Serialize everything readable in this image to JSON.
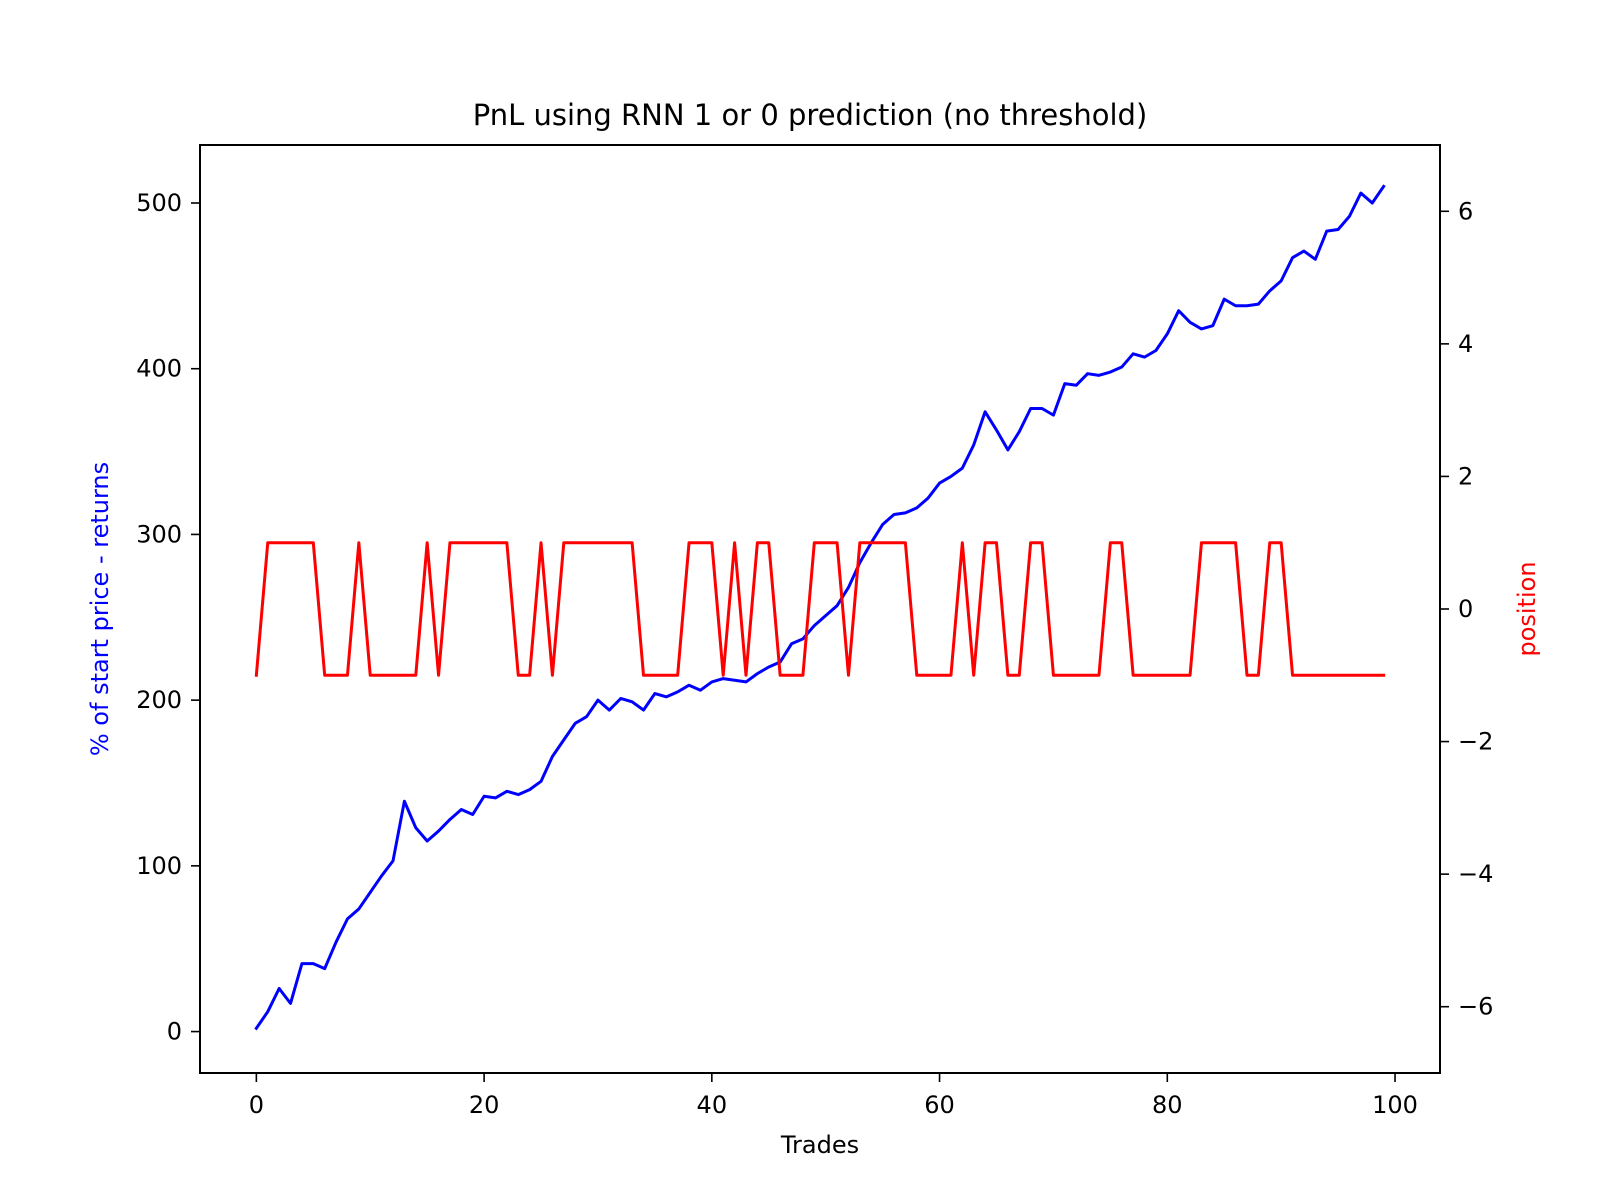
{
  "chart_data": {
    "type": "line",
    "title": "PnL using RNN 1 or 0 prediction (no threshold)",
    "xlabel": "Trades",
    "ylabel_left": "% of start price - returns",
    "ylabel_right": "position",
    "xlim": [
      -4.95,
      103.95
    ],
    "ylim_left": [
      -25,
      535
    ],
    "ylim_right": [
      -7,
      7
    ],
    "x_ticks": [
      0,
      20,
      40,
      60,
      80,
      100
    ],
    "x_tick_labels": [
      "0",
      "20",
      "40",
      "60",
      "80",
      "100"
    ],
    "y_left_ticks": [
      0,
      100,
      200,
      300,
      400,
      500
    ],
    "y_left_tick_labels": [
      "0",
      "100",
      "200",
      "300",
      "400",
      "500"
    ],
    "y_right_ticks": [
      -6,
      -4,
      -2,
      0,
      2,
      4,
      6
    ],
    "y_right_tick_labels": [
      "−6",
      "−4",
      "−2",
      "0",
      "2",
      "4",
      "6"
    ],
    "grid": false,
    "colors": {
      "left_series": "#0000ff",
      "right_series": "#ff0000",
      "axes": "#000000"
    },
    "series": [
      {
        "axis": "left",
        "color": "#0000ff",
        "x": [
          0,
          1,
          2,
          3,
          4,
          5,
          6,
          7,
          8,
          9,
          10,
          11,
          12,
          13,
          14,
          15,
          16,
          17,
          18,
          19,
          20,
          21,
          22,
          23,
          24,
          25,
          26,
          27,
          28,
          29,
          30,
          31,
          32,
          33,
          34,
          35,
          36,
          37,
          38,
          39,
          40,
          41,
          42,
          43,
          44,
          45,
          46,
          47,
          48,
          49,
          50,
          51,
          52,
          53,
          54,
          55,
          56,
          57,
          58,
          59,
          60,
          61,
          62,
          63,
          64,
          65,
          66,
          67,
          68,
          69,
          70,
          71,
          72,
          73,
          74,
          75,
          76,
          77,
          78,
          79,
          80,
          81,
          82,
          83,
          84,
          85,
          86,
          87,
          88,
          89,
          90,
          91,
          92,
          93,
          94,
          95,
          96,
          97,
          98,
          99
        ],
        "values": [
          2,
          12,
          26,
          17,
          41,
          41,
          38,
          54,
          68,
          74,
          84,
          94,
          103,
          139,
          123,
          115,
          121,
          128,
          134,
          131,
          142,
          141,
          145,
          143,
          146,
          151,
          166,
          176,
          186,
          190,
          200,
          194,
          201,
          199,
          194,
          204,
          202,
          205,
          209,
          206,
          211,
          213,
          212,
          211,
          216,
          220,
          223,
          234,
          237,
          245,
          251,
          257,
          268,
          283,
          295,
          306,
          312,
          313,
          316,
          322,
          331,
          335,
          340,
          354,
          374,
          363,
          351,
          362,
          376,
          376,
          372,
          391,
          390,
          397,
          396,
          398,
          401,
          409,
          407,
          411,
          421,
          435,
          428,
          424,
          426,
          442,
          438,
          438,
          439,
          447,
          453,
          467,
          471,
          466,
          483,
          484,
          492,
          506,
          500,
          510
        ]
      },
      {
        "axis": "right",
        "color": "#ff0000",
        "x": [
          0,
          1,
          2,
          3,
          4,
          5,
          6,
          7,
          8,
          9,
          10,
          11,
          12,
          13,
          14,
          15,
          16,
          17,
          18,
          19,
          20,
          21,
          22,
          23,
          24,
          25,
          26,
          27,
          28,
          29,
          30,
          31,
          32,
          33,
          34,
          35,
          36,
          37,
          38,
          39,
          40,
          41,
          42,
          43,
          44,
          45,
          46,
          47,
          48,
          49,
          50,
          51,
          52,
          53,
          54,
          55,
          56,
          57,
          58,
          59,
          60,
          61,
          62,
          63,
          64,
          65,
          66,
          67,
          68,
          69,
          70,
          71,
          72,
          73,
          74,
          75,
          76,
          77,
          78,
          79,
          80,
          81,
          82,
          83,
          84,
          85,
          86,
          87,
          88,
          89,
          90,
          91,
          92,
          93,
          94,
          95,
          96,
          97,
          98,
          99
        ],
        "values": [
          -1,
          1,
          1,
          1,
          1,
          1,
          -1,
          -1,
          -1,
          1,
          -1,
          -1,
          -1,
          -1,
          -1,
          1,
          -1,
          1,
          1,
          1,
          1,
          1,
          1,
          -1,
          -1,
          1,
          -1,
          1,
          1,
          1,
          1,
          1,
          1,
          1,
          -1,
          -1,
          -1,
          -1,
          1,
          1,
          1,
          -1,
          1,
          -1,
          1,
          1,
          -1,
          -1,
          -1,
          1,
          1,
          1,
          -1,
          1,
          1,
          1,
          1,
          1,
          -1,
          -1,
          -1,
          -1,
          1,
          -1,
          1,
          1,
          -1,
          -1,
          1,
          1,
          -1,
          -1,
          -1,
          -1,
          -1,
          1,
          1,
          -1,
          -1,
          -1,
          -1,
          -1,
          -1,
          1,
          1,
          1,
          1,
          -1,
          -1,
          1,
          1,
          -1,
          -1,
          -1,
          -1,
          -1,
          -1,
          -1,
          -1,
          -1
        ]
      }
    ]
  }
}
